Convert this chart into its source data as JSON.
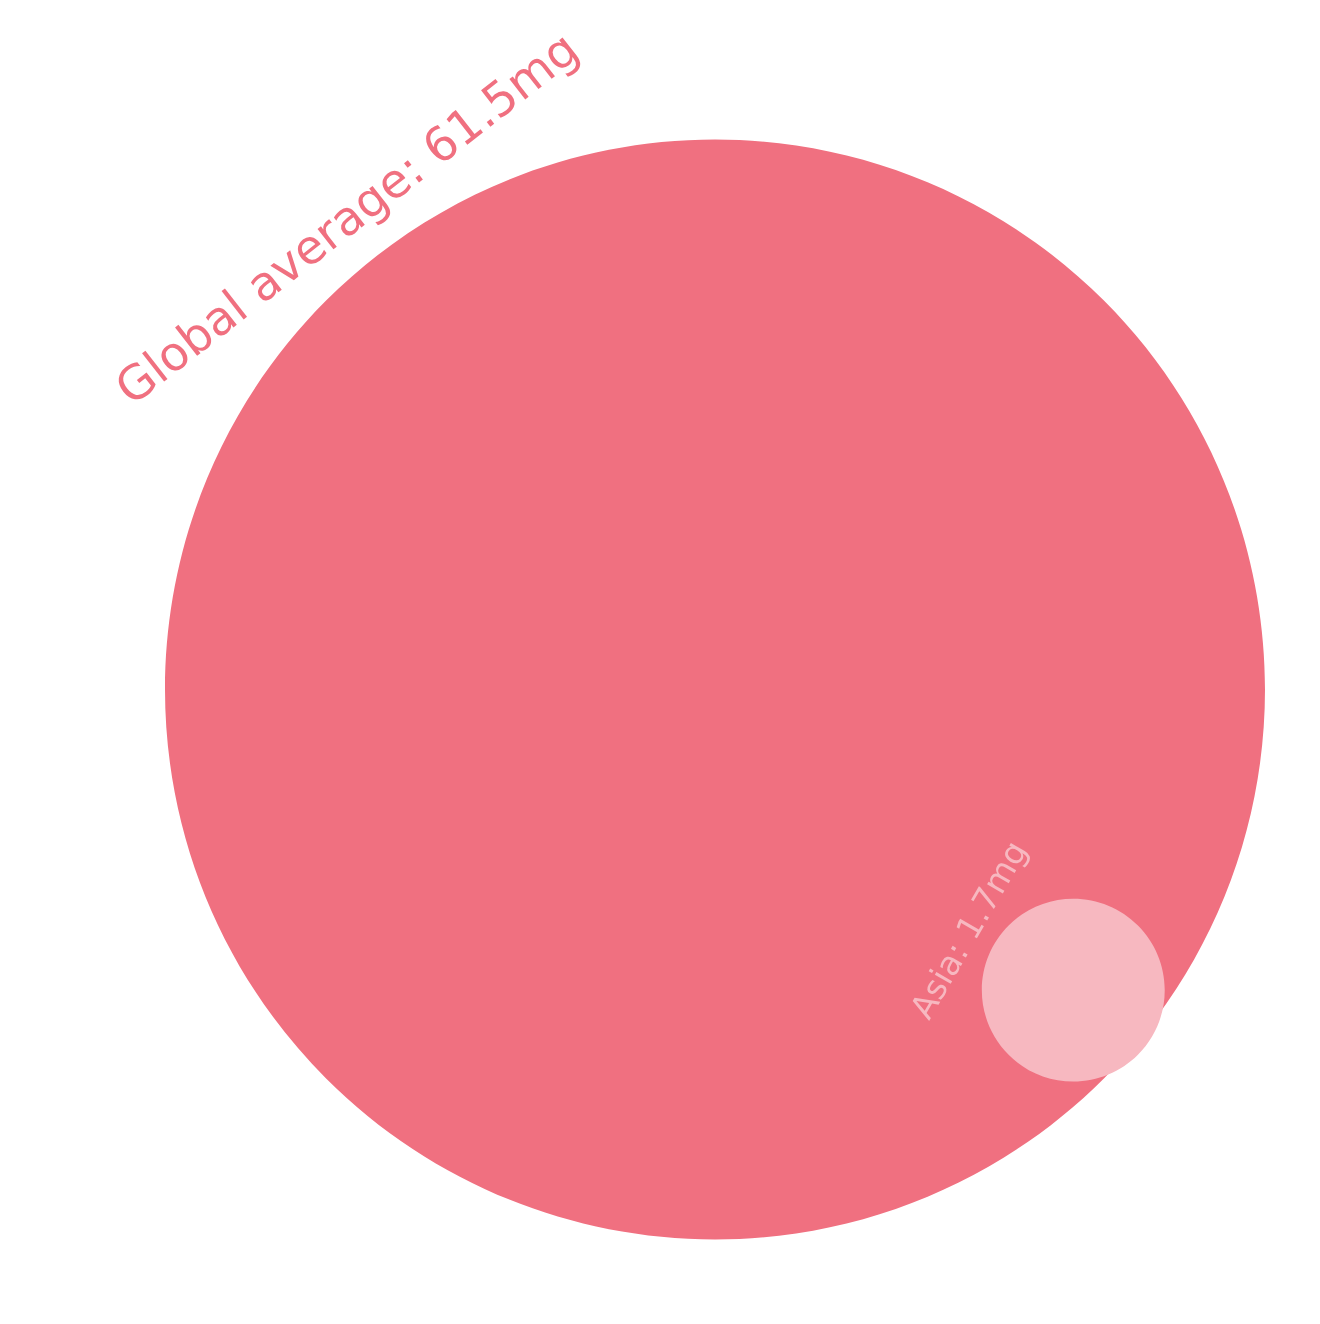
{
  "chart_data": {
    "type": "other",
    "values": [
      61.5,
      1.7
    ],
    "colors": [
      "#f07080",
      "#f7b8c0"
    ],
    "value_labels": [
      "Global average: 61.5mg",
      "Asia: 1.7mg"
    ]
  }
}
